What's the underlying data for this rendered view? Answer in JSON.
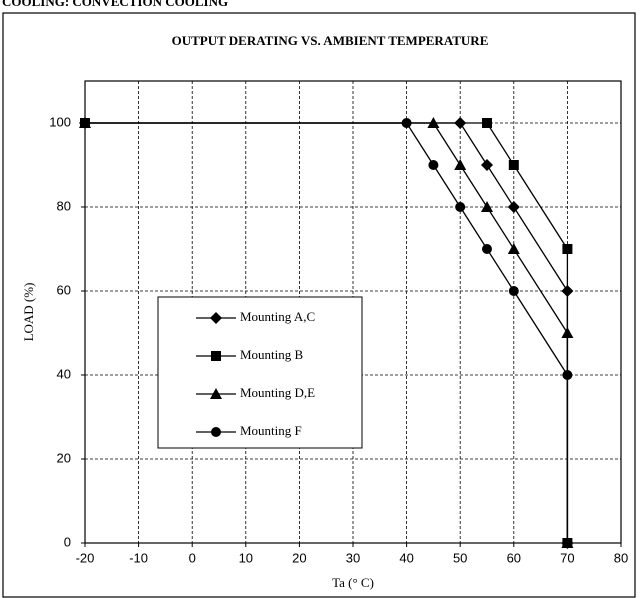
{
  "header": "COOLING: CONVECTION COOLING",
  "chart_data": {
    "type": "line",
    "title": "OUTPUT DERATING VS. AMBIENT TEMPERATURE",
    "x_label": "Ta (° C)",
    "y_label": "LOAD (%)",
    "xlim": [
      -20,
      80
    ],
    "xticks": [
      -20,
      -10,
      0,
      10,
      20,
      30,
      40,
      50,
      60,
      70,
      80
    ],
    "ylim": [
      0,
      110
    ],
    "yticks": [
      0,
      20,
      40,
      60,
      80,
      100
    ],
    "grid": true,
    "legend": "center-left",
    "series": [
      {
        "name": "Mounting A,C",
        "color": "#000000",
        "marker": "diamond",
        "x": [
          -20,
          50,
          55,
          60,
          70,
          70
        ],
        "values": [
          100,
          100,
          90,
          80,
          60,
          0
        ]
      },
      {
        "name": "Mounting B",
        "color": "#000000",
        "marker": "square",
        "x": [
          -20,
          55,
          60,
          70,
          70
        ],
        "values": [
          100,
          100,
          90,
          70,
          0
        ]
      },
      {
        "name": "Mounting D,E",
        "color": "#000000",
        "marker": "triangle",
        "x": [
          -20,
          45,
          50,
          55,
          60,
          70,
          70
        ],
        "values": [
          100,
          100,
          90,
          80,
          70,
          50,
          0
        ]
      },
      {
        "name": "Mounting F",
        "color": "#000000",
        "marker": "circle",
        "x": [
          -20,
          40,
          45,
          50,
          55,
          60,
          70,
          70
        ],
        "values": [
          100,
          100,
          90,
          80,
          70,
          60,
          40,
          0
        ]
      }
    ]
  }
}
